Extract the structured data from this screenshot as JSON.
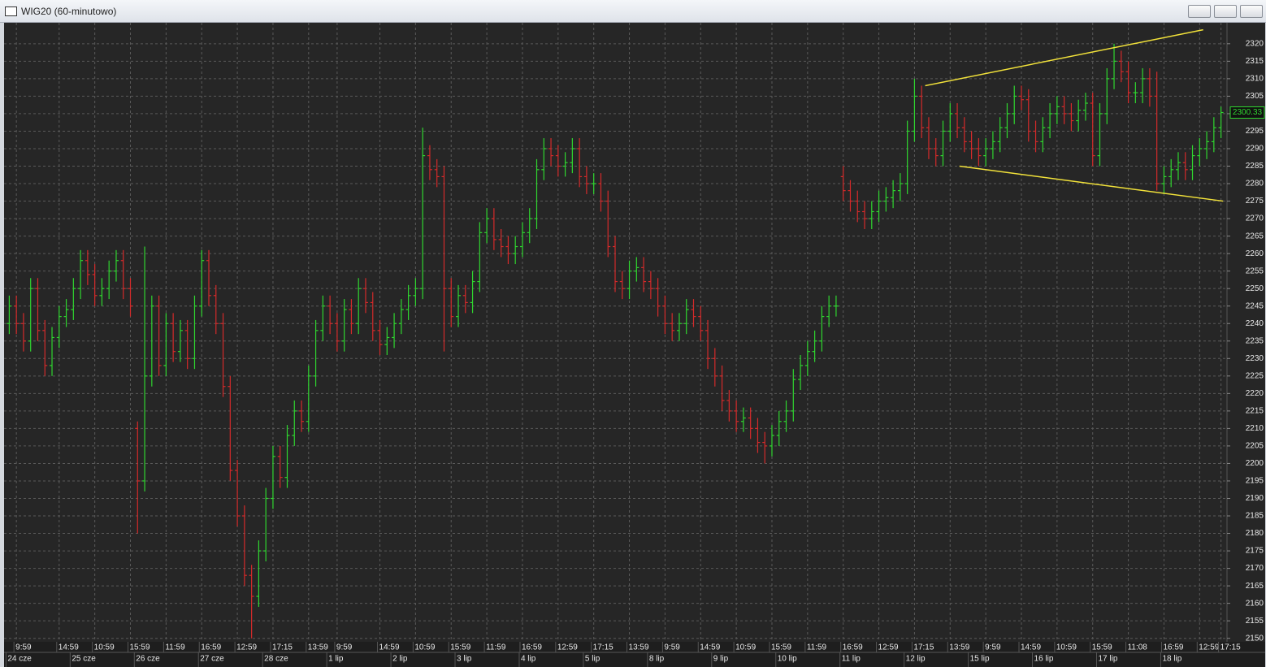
{
  "window": {
    "title": "WIG20 (60-minutowo)"
  },
  "chart_data": {
    "type": "ohlc",
    "categories": [
      null,
      "9:59",
      null,
      null,
      null,
      null,
      null,
      "14:59",
      null,
      null,
      null,
      null,
      "10:59",
      null,
      null,
      null,
      null,
      "15:59",
      null,
      null,
      null,
      null,
      "11:59",
      null,
      null,
      null,
      null,
      "16:59",
      null,
      null,
      null,
      null,
      "12:59",
      null,
      null,
      null,
      null,
      "17:15",
      null,
      null,
      null,
      null,
      "13:59",
      null,
      null,
      null,
      "9:59",
      null,
      null,
      null,
      null,
      null,
      "14:59",
      null,
      null,
      null,
      null,
      "10:59",
      null,
      null,
      null,
      null,
      "15:59",
      null,
      null,
      null,
      null,
      "11:59",
      null,
      null,
      null,
      null,
      "16:59",
      null,
      null,
      null,
      null,
      "12:59",
      null,
      null,
      null,
      null,
      "17:15",
      null,
      null,
      null,
      null,
      "13:59",
      null,
      null,
      null,
      null,
      "9:59",
      null,
      null,
      null,
      null,
      "14:59",
      null,
      null,
      null,
      null,
      "10:59",
      null,
      null,
      null,
      null,
      "15:59",
      null,
      null,
      null,
      null,
      "11:59",
      null,
      null,
      null,
      null,
      "16:59",
      null,
      null,
      null,
      null,
      "12:59",
      null,
      null,
      null,
      null,
      "17:15",
      null,
      null,
      null,
      null,
      "13:59",
      null,
      null,
      null,
      null,
      "9:59",
      null,
      null,
      null,
      null,
      "14:59",
      null,
      null,
      null,
      null,
      "10:59",
      null,
      null,
      null,
      null,
      "15:59",
      null,
      null,
      null,
      null,
      "11:08",
      null,
      null,
      null,
      null,
      "16:59",
      null,
      null,
      null,
      null,
      "12:59",
      null,
      null,
      "17:15"
    ],
    "dates": [
      "24 cze",
      null,
      null,
      null,
      null,
      null,
      null,
      null,
      null,
      "25 cze",
      null,
      null,
      null,
      null,
      null,
      null,
      null,
      null,
      "26 cze",
      null,
      null,
      null,
      null,
      null,
      null,
      null,
      null,
      "27 cze",
      null,
      null,
      null,
      null,
      null,
      null,
      null,
      null,
      "28 cze",
      null,
      null,
      null,
      null,
      null,
      null,
      null,
      null,
      "1 lip",
      null,
      null,
      null,
      null,
      null,
      null,
      null,
      null,
      "2 lip",
      null,
      null,
      null,
      null,
      null,
      null,
      null,
      null,
      "3 lip",
      null,
      null,
      null,
      null,
      null,
      null,
      null,
      null,
      "4 lip",
      null,
      null,
      null,
      null,
      null,
      null,
      null,
      null,
      "5 lip",
      null,
      null,
      null,
      null,
      null,
      null,
      null,
      null,
      "8 lip",
      null,
      null,
      null,
      null,
      null,
      null,
      null,
      null,
      "9 lip",
      null,
      null,
      null,
      null,
      null,
      null,
      null,
      null,
      "10 lip",
      null,
      null,
      null,
      null,
      null,
      null,
      null,
      null,
      "11 lip",
      null,
      null,
      null,
      null,
      null,
      null,
      null,
      null,
      "12 lip",
      null,
      null,
      null,
      null,
      null,
      null,
      null,
      null,
      "15 lip",
      null,
      null,
      null,
      null,
      null,
      null,
      null,
      null,
      "16 lip",
      null,
      null,
      null,
      null,
      null,
      null,
      null,
      null,
      "17 lip",
      null,
      null,
      null,
      null,
      null,
      null,
      null,
      null,
      "18 lip",
      null,
      null,
      null,
      null,
      null,
      null,
      null,
      null
    ],
    "open": [
      2240,
      2245,
      2240,
      2235,
      2250,
      2238,
      2228,
      2236,
      2242,
      2244,
      2250,
      2258,
      2254,
      2248,
      2250,
      2255,
      2258,
      2250,
      2210,
      2195,
      2225,
      2245,
      2228,
      2240,
      2232,
      2238,
      2230,
      2245,
      2258,
      2248,
      2240,
      2222,
      2198,
      2185,
      2168,
      2162,
      2175,
      2190,
      2202,
      2196,
      2208,
      2215,
      2212,
      2225,
      2238,
      2245,
      2240,
      2235,
      2244,
      2240,
      2250,
      2246,
      2238,
      2234,
      2236,
      2240,
      2244,
      2248,
      2250,
      2288,
      2284,
      2282,
      2250,
      2242,
      2248,
      2246,
      2252,
      2266,
      2270,
      2264,
      2262,
      2260,
      2262,
      2266,
      2270,
      2284,
      2290,
      2288,
      2285,
      2286,
      2290,
      2282,
      2280,
      2280,
      2275,
      2262,
      2252,
      2250,
      2255,
      2256,
      2252,
      2250,
      2245,
      2240,
      2238,
      2240,
      2244,
      2242,
      2238,
      2230,
      2225,
      2218,
      2215,
      2212,
      2213,
      2210,
      2206,
      2205,
      2208,
      2212,
      2215,
      2224,
      2228,
      2232,
      2235,
      2242,
      2245,
      2282,
      2278,
      2275,
      2272,
      2270,
      2272,
      2275,
      2276,
      2278,
      2280,
      2295,
      2305,
      2296,
      2290,
      2288,
      2295,
      2300,
      2296,
      2292,
      2290,
      2288,
      2290,
      2292,
      2296,
      2300,
      2305,
      2304,
      2295,
      2292,
      2296,
      2300,
      2302,
      2300,
      2298,
      2301,
      2303,
      2288,
      2300,
      2310,
      2315,
      2312,
      2306,
      2306,
      2310,
      2305,
      2280,
      2282,
      2284,
      2286,
      2284,
      2288,
      2290,
      2292,
      2296
    ],
    "high": [
      2248,
      2248,
      2243,
      2253,
      2253,
      2241,
      2239,
      2245,
      2247,
      2253,
      2261,
      2261,
      2257,
      2253,
      2258,
      2261,
      2261,
      2253,
      2212,
      2262,
      2248,
      2248,
      2243,
      2243,
      2241,
      2241,
      2248,
      2261,
      2261,
      2251,
      2243,
      2225,
      2201,
      2188,
      2171,
      2178,
      2193,
      2205,
      2205,
      2211,
      2218,
      2218,
      2228,
      2241,
      2248,
      2248,
      2243,
      2247,
      2247,
      2253,
      2253,
      2249,
      2241,
      2239,
      2243,
      2247,
      2251,
      2253,
      2296,
      2291,
      2287,
      2285,
      2253,
      2251,
      2251,
      2255,
      2269,
      2273,
      2273,
      2267,
      2265,
      2265,
      2269,
      2273,
      2287,
      2293,
      2293,
      2291,
      2289,
      2293,
      2293,
      2285,
      2283,
      2283,
      2278,
      2265,
      2255,
      2258,
      2259,
      2259,
      2255,
      2253,
      2248,
      2243,
      2243,
      2247,
      2247,
      2245,
      2241,
      2233,
      2228,
      2221,
      2218,
      2216,
      2216,
      2213,
      2209,
      2211,
      2215,
      2218,
      2227,
      2231,
      2235,
      2238,
      2245,
      2248,
      2248,
      2285,
      2281,
      2278,
      2275,
      2275,
      2278,
      2279,
      2281,
      2283,
      2298,
      2310,
      2308,
      2299,
      2293,
      2298,
      2303,
      2303,
      2299,
      2295,
      2293,
      2293,
      2295,
      2299,
      2303,
      2308,
      2308,
      2307,
      2298,
      2299,
      2303,
      2305,
      2305,
      2303,
      2304,
      2306,
      2306,
      2303,
      2313,
      2320,
      2318,
      2315,
      2309,
      2313,
      2313,
      2312,
      2285,
      2287,
      2289,
      2289,
      2291,
      2293,
      2295,
      2299,
      2302
    ],
    "low": [
      2237,
      2237,
      2232,
      2232,
      2235,
      2225,
      2225,
      2233,
      2239,
      2241,
      2247,
      2251,
      2245,
      2245,
      2247,
      2252,
      2247,
      2242,
      2180,
      2192,
      2222,
      2225,
      2225,
      2229,
      2229,
      2227,
      2227,
      2242,
      2245,
      2237,
      2219,
      2195,
      2182,
      2165,
      2150,
      2159,
      2172,
      2187,
      2193,
      2193,
      2205,
      2209,
      2209,
      2222,
      2235,
      2237,
      2232,
      2232,
      2237,
      2237,
      2243,
      2235,
      2231,
      2231,
      2233,
      2237,
      2241,
      2245,
      2247,
      2281,
      2279,
      2232,
      2239,
      2239,
      2243,
      2243,
      2249,
      2263,
      2261,
      2259,
      2257,
      2257,
      2259,
      2263,
      2267,
      2281,
      2285,
      2282,
      2282,
      2283,
      2279,
      2277,
      2277,
      2272,
      2259,
      2249,
      2247,
      2247,
      2252,
      2249,
      2247,
      2242,
      2237,
      2235,
      2235,
      2237,
      2239,
      2235,
      2227,
      2222,
      2215,
      2212,
      2209,
      2209,
      2207,
      2203,
      2200,
      2202,
      2205,
      2209,
      2212,
      2221,
      2225,
      2229,
      2232,
      2239,
      2242,
      2275,
      2272,
      2269,
      2267,
      2267,
      2269,
      2272,
      2273,
      2275,
      2277,
      2292,
      2293,
      2287,
      2285,
      2285,
      2292,
      2293,
      2289,
      2287,
      2285,
      2285,
      2287,
      2289,
      2293,
      2297,
      2301,
      2292,
      2289,
      2289,
      2293,
      2297,
      2297,
      2295,
      2295,
      2298,
      2285,
      2285,
      2297,
      2307,
      2309,
      2303,
      2303,
      2303,
      2302,
      2278,
      2277,
      2279,
      2281,
      2281,
      2281,
      2285,
      2287,
      2289,
      2293
    ],
    "close": [
      2245,
      2240,
      2235,
      2250,
      2238,
      2228,
      2236,
      2242,
      2244,
      2250,
      2258,
      2254,
      2248,
      2250,
      2255,
      2258,
      2250,
      2245,
      2195,
      2225,
      2245,
      2228,
      2240,
      2232,
      2238,
      2230,
      2245,
      2258,
      2248,
      2240,
      2222,
      2198,
      2185,
      2168,
      2162,
      2175,
      2190,
      2202,
      2196,
      2208,
      2215,
      2212,
      2225,
      2238,
      2245,
      2240,
      2235,
      2244,
      2240,
      2250,
      2246,
      2238,
      2234,
      2236,
      2240,
      2244,
      2248,
      2250,
      2288,
      2284,
      2282,
      2250,
      2242,
      2248,
      2246,
      2252,
      2266,
      2270,
      2264,
      2262,
      2260,
      2262,
      2266,
      2270,
      2284,
      2290,
      2288,
      2285,
      2286,
      2290,
      2282,
      2280,
      2280,
      2275,
      2262,
      2252,
      2250,
      2255,
      2256,
      2252,
      2250,
      2245,
      2240,
      2238,
      2240,
      2244,
      2242,
      2238,
      2230,
      2225,
      2218,
      2215,
      2212,
      2213,
      2210,
      2206,
      2205,
      2208,
      2212,
      2215,
      2224,
      2228,
      2232,
      2235,
      2242,
      2245,
      2245,
      2278,
      2275,
      2272,
      2270,
      2272,
      2275,
      2276,
      2278,
      2280,
      2295,
      2305,
      2296,
      2290,
      2288,
      2295,
      2300,
      2296,
      2292,
      2290,
      2288,
      2290,
      2292,
      2296,
      2300,
      2305,
      2304,
      2295,
      2292,
      2296,
      2300,
      2302,
      2300,
      2298,
      2301,
      2303,
      2288,
      2300,
      2310,
      2315,
      2312,
      2306,
      2306,
      2310,
      2305,
      2280,
      2282,
      2284,
      2286,
      2284,
      2288,
      2290,
      2292,
      2296,
      2300.33
    ],
    "up_color": "#2fd62f",
    "down_color": "#d42a2a",
    "ylim": [
      2149,
      2326
    ],
    "yticks": [
      2150,
      2155,
      2160,
      2165,
      2170,
      2175,
      2180,
      2185,
      2190,
      2195,
      2200,
      2205,
      2210,
      2215,
      2220,
      2225,
      2230,
      2235,
      2240,
      2245,
      2250,
      2255,
      2260,
      2265,
      2270,
      2275,
      2280,
      2285,
      2290,
      2295,
      2300,
      2305,
      2310,
      2315,
      2320
    ],
    "grid": true,
    "trendlines": [
      {
        "x": [
          128.5,
          167.5
        ],
        "y": [
          2308,
          2324
        ],
        "color": "#f2e23a"
      },
      {
        "x": [
          133.3,
          170.3
        ],
        "y": [
          2285,
          2275
        ],
        "color": "#f2e23a"
      }
    ]
  }
}
